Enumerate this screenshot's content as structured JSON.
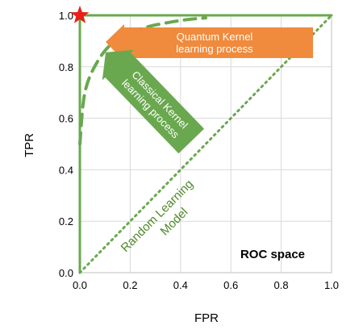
{
  "chart_data": {
    "type": "line",
    "xlabel": "FPR",
    "ylabel": "TPR",
    "xlim": [
      0.0,
      1.0
    ],
    "ylim": [
      0.0,
      1.0
    ],
    "x_ticks": [
      "0.0",
      "0.2",
      "0.4",
      "0.6",
      "0.8",
      "1.0"
    ],
    "y_ticks": [
      "0.0",
      "0.2",
      "0.4",
      "0.6",
      "0.8",
      "1.0"
    ],
    "grid": true,
    "series": [
      {
        "style": "solid",
        "color": "#6aa84f",
        "points": [
          [
            0.0,
            0.0
          ],
          [
            0.0,
            1.0
          ],
          [
            1.0,
            1.0
          ]
        ]
      },
      {
        "style": "dashed",
        "color": "#6aa84f",
        "points": [
          [
            0.0,
            0.5
          ],
          [
            0.02,
            0.7
          ],
          [
            0.07,
            0.82
          ],
          [
            0.14,
            0.9
          ],
          [
            0.25,
            0.95
          ],
          [
            0.4,
            0.98
          ],
          [
            0.5,
            0.99
          ]
        ]
      },
      {
        "style": "dotted",
        "color": "#6aa84f",
        "points": [
          [
            0.0,
            0.0
          ],
          [
            1.0,
            1.0
          ]
        ]
      }
    ],
    "marker": {
      "shape": "star",
      "color": "#e8201a",
      "x": 0.0,
      "y": 1.0
    },
    "annotations": {
      "quantum": {
        "line1": "Quantum Kernel",
        "line2": "learning process",
        "color": "#f08a3c"
      },
      "classical": {
        "line1": "Classical Kernel",
        "line2": "learning process",
        "color": "#6aa84f"
      },
      "random": {
        "line1": "Random Learning",
        "line2": "Model"
      },
      "roc_space": "ROC space"
    }
  }
}
